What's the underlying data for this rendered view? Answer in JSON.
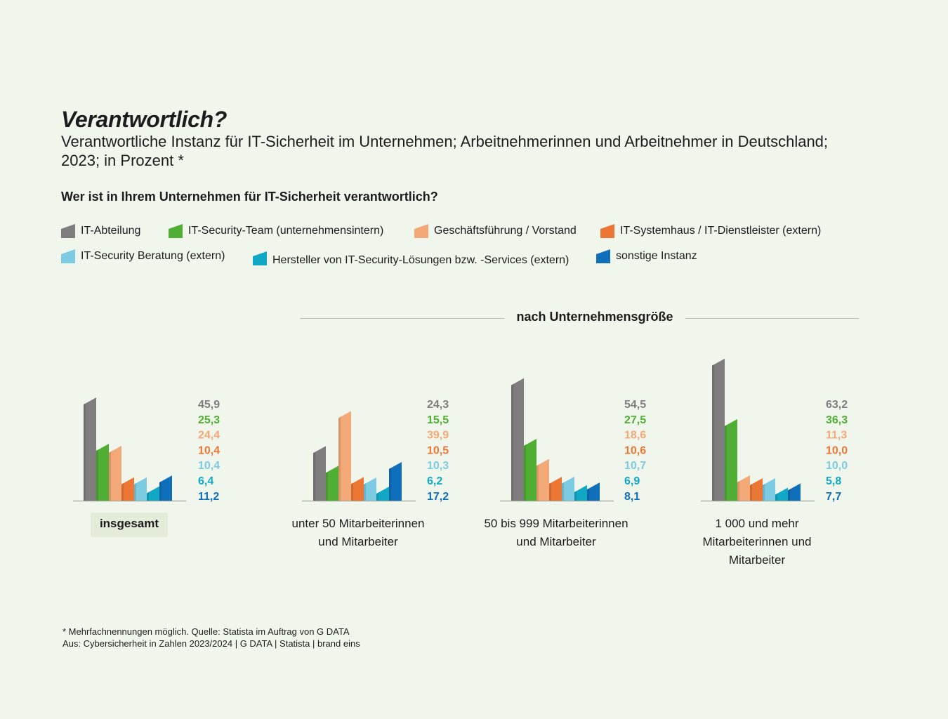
{
  "title": "Verantwortlich?",
  "subtitle": "Verantwortliche Instanz für IT-Sicherheit im Unternehmen; Arbeitnehmerinnen und Arbeitnehmer in Deutschland; 2023; in Prozent *",
  "question": "Wer ist in Ihrem Unternehmen für IT-Sicherheit verantwortlich?",
  "legend": [
    {
      "label": "IT-Abteilung",
      "color": "#7e7c7d"
    },
    {
      "label": "IT-Security-Team (unternehmensintern)",
      "color": "#4fae33"
    },
    {
      "label": "Geschäftsführung / Vorstand",
      "color": "#f3a877"
    },
    {
      "label": "IT-Systemhaus / IT-Dienstleister (extern)",
      "color": "#ec7735"
    },
    {
      "label": "IT-Security Beratung (extern)",
      "color": "#7ccbe2"
    },
    {
      "label": "Hersteller von IT-Security-Lösungen bzw. -Services (extern)",
      "color": "#11a8c6"
    },
    {
      "label": "sonstige Instanz",
      "color": "#0f6fbb"
    }
  ],
  "group_heading": "nach Unternehmensgröße",
  "categories": [
    {
      "label": "insgesamt",
      "values_text": [
        "45,9",
        "25,3",
        "24,4",
        "10,4",
        "10,4",
        "6,4",
        "11,2"
      ]
    },
    {
      "label": "unter 50 Mitarbeiterinnen und Mitarbeiter",
      "values_text": [
        "24,3",
        "15,5",
        "39,9",
        "10,5",
        "10,3",
        "6,2",
        "17,2"
      ]
    },
    {
      "label": "50 bis 999 Mitarbeiterinnen und Mitarbeiter",
      "values_text": [
        "54,5",
        "27,5",
        "18,6",
        "10,6",
        "10,7",
        "6,9",
        "8,1"
      ]
    },
    {
      "label": "1 000 und mehr Mitarbeiterinnen und Mitarbeiter",
      "values_text": [
        "63,2",
        "36,3",
        "11,3",
        "10,0",
        "10,0",
        "5,8",
        "7,7"
      ]
    }
  ],
  "chart_data": {
    "type": "bar",
    "title": "Verantwortlich?",
    "subtitle": "Verantwortliche Instanz für IT-Sicherheit im Unternehmen; Arbeitnehmerinnen und Arbeitnehmer in Deutschland; 2023; in Prozent *",
    "categories": [
      "insgesamt",
      "unter 50 Mitarbeiterinnen und Mitarbeiter",
      "50 bis 999 Mitarbeiterinnen und Mitarbeiter",
      "1 000 und mehr Mitarbeiterinnen und Mitarbeiter"
    ],
    "series": [
      {
        "name": "IT-Abteilung",
        "values": [
          45.9,
          24.3,
          54.5,
          63.2
        ]
      },
      {
        "name": "IT-Security-Team (unternehmensintern)",
        "values": [
          25.3,
          15.5,
          27.5,
          36.3
        ]
      },
      {
        "name": "Geschäftsführung / Vorstand",
        "values": [
          24.4,
          39.9,
          18.6,
          11.3
        ]
      },
      {
        "name": "IT-Systemhaus / IT-Dienstleister (extern)",
        "values": [
          10.4,
          10.5,
          10.6,
          10.0
        ]
      },
      {
        "name": "IT-Security Beratung (extern)",
        "values": [
          10.4,
          10.3,
          10.7,
          10.0
        ]
      },
      {
        "name": "Hersteller von IT-Security-Lösungen bzw. -Services (extern)",
        "values": [
          6.4,
          6.2,
          6.9,
          5.8
        ]
      },
      {
        "name": "sonstige Instanz",
        "values": [
          11.2,
          17.2,
          8.1,
          7.7
        ]
      }
    ],
    "xlabel": "",
    "ylabel": "",
    "ylim": [
      0,
      70
    ],
    "grid": false,
    "legend_position": "top"
  },
  "footnote": [
    "* Mehrfachnennungen möglich. Quelle: Statista im Auftrag von G DATA",
    "Aus: Cybersicherheit in Zahlen 2023/2024 | G DATA | Statista | brand eins"
  ]
}
